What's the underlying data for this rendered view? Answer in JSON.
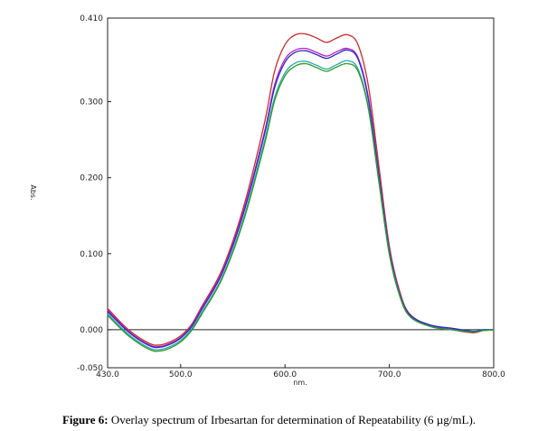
{
  "caption": {
    "label": "Figure 6:",
    "text": "Overlay spectrum of Irbesartan for determination of Repeatability (6 µg/mL)."
  },
  "chart_data": {
    "type": "line",
    "title": "",
    "xlabel": "nm.",
    "ylabel": "Abs.",
    "xlim": [
      430.0,
      800.0
    ],
    "ylim": [
      -0.05,
      0.41
    ],
    "x_ticks": [
      "430.0",
      "500.0",
      "600.0",
      "700.0",
      "800.0"
    ],
    "y_ticks": [
      "-0.050",
      "0.000",
      "0.100",
      "0.200",
      "0.300",
      "0.410"
    ],
    "x_tick_values": [
      430,
      500,
      600,
      700,
      800
    ],
    "y_tick_values": [
      -0.05,
      0.0,
      0.1,
      0.2,
      0.3,
      0.41
    ],
    "zero_line": true,
    "grid": false,
    "x": [
      430,
      450,
      470,
      480,
      490,
      500,
      510,
      520,
      540,
      560,
      580,
      590,
      600,
      610,
      620,
      630,
      640,
      650,
      660,
      670,
      680,
      690,
      700,
      710,
      720,
      740,
      760,
      780,
      790,
      800
    ],
    "series": [
      {
        "color": "#cc2a2a",
        "values": [
          0.028,
          0.0,
          -0.018,
          -0.02,
          -0.016,
          -0.008,
          0.006,
          0.03,
          0.08,
          0.16,
          0.27,
          0.34,
          0.375,
          0.388,
          0.389,
          0.384,
          0.378,
          0.384,
          0.388,
          0.375,
          0.32,
          0.215,
          0.11,
          0.05,
          0.02,
          0.005,
          0.0,
          -0.004,
          -0.001,
          0.0
        ]
      },
      {
        "color": "#c020c0",
        "values": [
          0.026,
          -0.002,
          -0.02,
          -0.022,
          -0.018,
          -0.01,
          0.004,
          0.028,
          0.077,
          0.155,
          0.258,
          0.322,
          0.356,
          0.368,
          0.37,
          0.365,
          0.36,
          0.366,
          0.37,
          0.358,
          0.305,
          0.205,
          0.106,
          0.048,
          0.019,
          0.005,
          0.001,
          -0.003,
          -0.001,
          0.0
        ]
      },
      {
        "color": "#2a2acc",
        "values": [
          0.024,
          -0.003,
          -0.021,
          -0.023,
          -0.019,
          -0.011,
          0.003,
          0.026,
          0.075,
          0.152,
          0.255,
          0.318,
          0.352,
          0.365,
          0.367,
          0.362,
          0.357,
          0.363,
          0.368,
          0.356,
          0.302,
          0.202,
          0.104,
          0.047,
          0.019,
          0.006,
          0.002,
          -0.002,
          0.0,
          0.0
        ]
      },
      {
        "color": "#2aa8a8",
        "values": [
          0.021,
          -0.006,
          -0.024,
          -0.026,
          -0.022,
          -0.014,
          0.0,
          0.022,
          0.07,
          0.145,
          0.246,
          0.305,
          0.338,
          0.351,
          0.353,
          0.348,
          0.343,
          0.349,
          0.354,
          0.343,
          0.292,
          0.196,
          0.1,
          0.045,
          0.017,
          0.004,
          0.0,
          -0.003,
          -0.001,
          0.0
        ]
      },
      {
        "color": "#2a9a2a",
        "values": [
          0.019,
          -0.008,
          -0.026,
          -0.028,
          -0.024,
          -0.016,
          -0.002,
          0.02,
          0.068,
          0.142,
          0.242,
          0.301,
          0.334,
          0.347,
          0.35,
          0.345,
          0.34,
          0.346,
          0.35,
          0.34,
          0.29,
          0.194,
          0.099,
          0.044,
          0.017,
          0.004,
          0.0,
          -0.003,
          -0.001,
          0.0
        ]
      }
    ]
  }
}
